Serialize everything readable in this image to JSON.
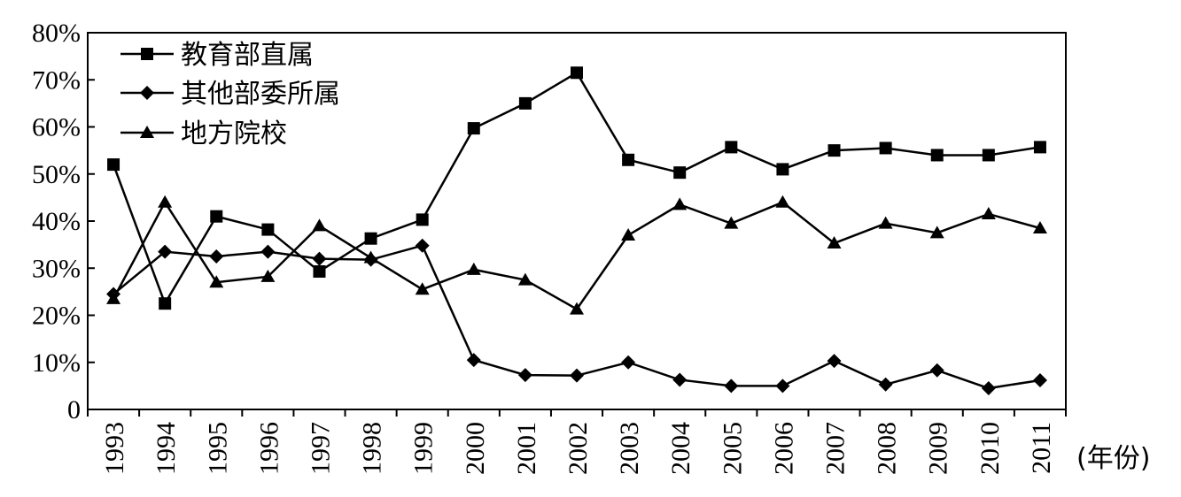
{
  "chart_data": {
    "type": "line",
    "categories": [
      "1993",
      "1994",
      "1995",
      "1996",
      "1997",
      "1998",
      "1999",
      "2000",
      "2001",
      "2002",
      "2003",
      "2004",
      "2005",
      "2006",
      "2007",
      "2008",
      "2009",
      "2010",
      "2011"
    ],
    "x_unit": "(年份)",
    "ylim": [
      0,
      80
    ],
    "yticks": [
      "0",
      "10%",
      "20%",
      "30%",
      "40%",
      "50%",
      "60%",
      "70%",
      "80%"
    ],
    "ytick_values": [
      0,
      10,
      20,
      30,
      40,
      50,
      60,
      70,
      80
    ],
    "legend_position": "top-left",
    "grid": false,
    "series": [
      {
        "name": "教育部直属",
        "marker": "square",
        "values": [
          52,
          22.5,
          41,
          38.2,
          29.3,
          36.3,
          40.3,
          59.7,
          65,
          71.5,
          53,
          50.3,
          55.7,
          51,
          55,
          55.5,
          54,
          54,
          55.7
        ]
      },
      {
        "name": "其他部委所属",
        "marker": "diamond",
        "values": [
          24.5,
          33.5,
          32.5,
          33.5,
          32,
          31.8,
          34.8,
          10.5,
          7.3,
          7.2,
          10,
          6.3,
          5,
          5,
          10.3,
          5.3,
          8.3,
          4.5,
          6.2
        ]
      },
      {
        "name": "地方院校",
        "marker": "triangle",
        "values": [
          23.5,
          44,
          27,
          28.2,
          39,
          32.2,
          25.5,
          29.7,
          27.5,
          21.3,
          37,
          43.5,
          39.5,
          44,
          35.3,
          39.5,
          37.5,
          41.5,
          38.5
        ]
      }
    ]
  }
}
